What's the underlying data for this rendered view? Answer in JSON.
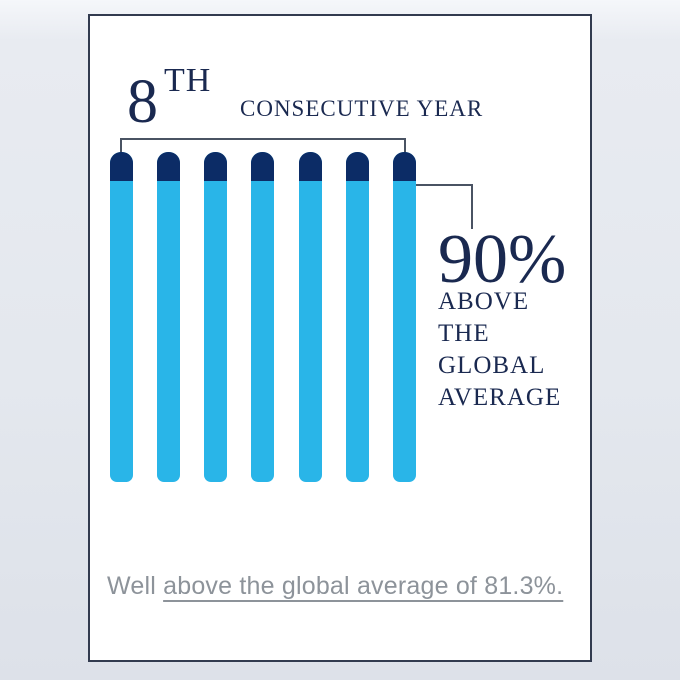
{
  "headline": {
    "number": "8",
    "ordinal": "TH",
    "label": "CONSECUTIVE YEAR"
  },
  "callout": {
    "value": "90%",
    "lines": [
      "ABOVE",
      "THE",
      "GLOBAL",
      "AVERAGE"
    ]
  },
  "footnote": {
    "prefix": "Well ",
    "underlined": "above the global average of 81.3%."
  },
  "colors": {
    "navy_text": "#1a2950",
    "bar_cap": "#0c2c66",
    "bar_body": "#29b5e8",
    "connector": "#4a5363",
    "footnote_gray": "#8d939a",
    "card_border": "#323b4f",
    "card_bg": "#ffffff"
  },
  "chart_data": {
    "type": "bar",
    "bar_count": 7,
    "values": [
      90,
      90,
      90,
      90,
      90,
      90,
      90
    ],
    "unit": "%",
    "global_average": 81.3,
    "title": "8TH CONSECUTIVE YEAR",
    "callout_annotation": "90% ABOVE THE GLOBAL AVERAGE",
    "footnote_annotation": "Well above the global average of 81.3%.",
    "xlabel": "",
    "ylabel": "",
    "axes_shown": false,
    "grid": false,
    "legend": "none",
    "notes": "Seven identical pill-shaped bars; each bar has a dark navy cap segment representing the margin above the global average and a cyan body; a bracket spans all bars linked to the headline, and an elbow connector links the last bar to the 90% callout."
  }
}
